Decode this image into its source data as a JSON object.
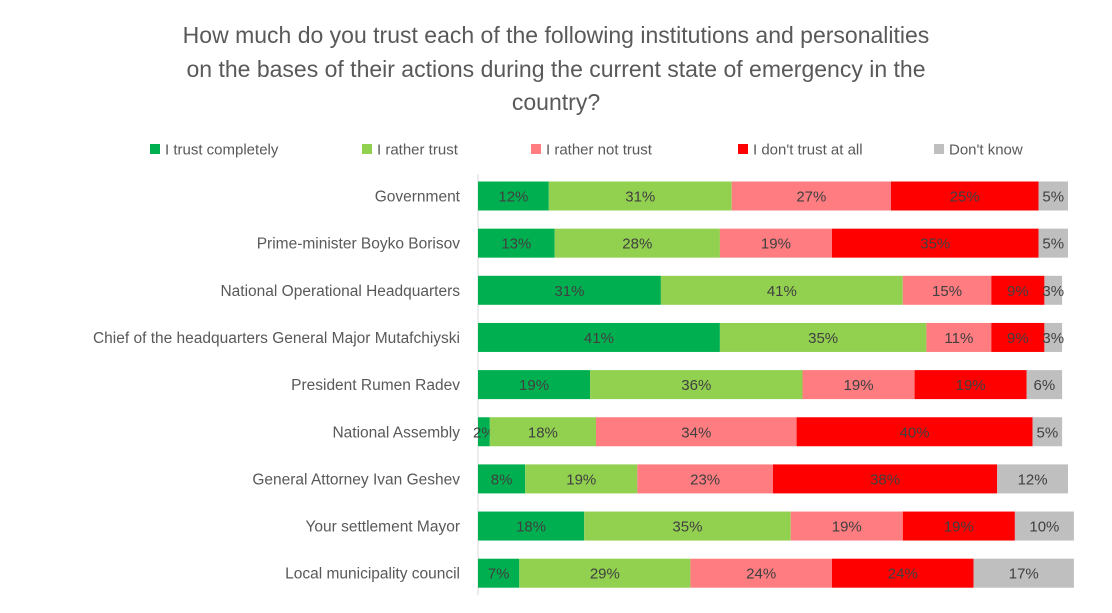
{
  "chart_data": {
    "type": "bar",
    "orientation": "horizontal",
    "stacked": true,
    "percent_stacked": true,
    "title": "How much do you trust each of the following institutions and personalities on the bases of their actions during the current state of emergency in the country?",
    "title_lines": [
      "How much do you trust each of the following institutions and personalities",
      "on the bases of their actions during the current state of emergency in the",
      "country?"
    ],
    "xlabel": "",
    "ylabel": "",
    "xlim": [
      0,
      100
    ],
    "grid": false,
    "legend_position": "top",
    "categories": [
      "Government",
      "Prime-minister Boyko Borisov",
      "National Operational Headquarters",
      "Chief of the headquarters General Major Mutafchiyski",
      "President Rumen Radev",
      "National Assembly",
      "General Attorney Ivan Geshev",
      "Your settlement Mayor",
      "Local municipality council"
    ],
    "series": [
      {
        "name": "I trust completely",
        "color": "#00B050",
        "values": [
          12,
          13,
          31,
          41,
          19,
          2,
          8,
          18,
          7
        ],
        "labels": [
          "12%",
          "13%",
          "31%",
          "41%",
          "19%",
          "2%",
          "8%",
          "18%",
          "7%"
        ]
      },
      {
        "name": "I rather trust",
        "color": "#92D050",
        "values": [
          31,
          28,
          41,
          35,
          36,
          18,
          19,
          35,
          29
        ],
        "labels": [
          "31%",
          "28%",
          "41%",
          "35%",
          "36%",
          "18%",
          "19%",
          "35%",
          "29%"
        ]
      },
      {
        "name": "I rather not trust",
        "color": "#FF7C80",
        "values": [
          27,
          19,
          15,
          11,
          19,
          34,
          23,
          19,
          24
        ],
        "labels": [
          "27%",
          "19%",
          "15%",
          "11%",
          "19%",
          "34%",
          "23%",
          "19%",
          "24%"
        ]
      },
      {
        "name": "I don't trust at all",
        "color": "#FF0000",
        "values": [
          25,
          35,
          9,
          9,
          19,
          40,
          38,
          19,
          24
        ],
        "labels": [
          "25%",
          "35%",
          "9%",
          "9%",
          "19%",
          "40%",
          "38%",
          "19%",
          "24%"
        ]
      },
      {
        "name": "Don't know",
        "color": "#BFBFBF",
        "values": [
          5,
          5,
          3,
          3,
          6,
          5,
          12,
          10,
          17
        ],
        "labels": [
          "5%",
          "5%",
          "3%",
          "3%",
          "6%",
          "5%",
          "12%",
          "10%",
          "17%"
        ]
      }
    ]
  }
}
